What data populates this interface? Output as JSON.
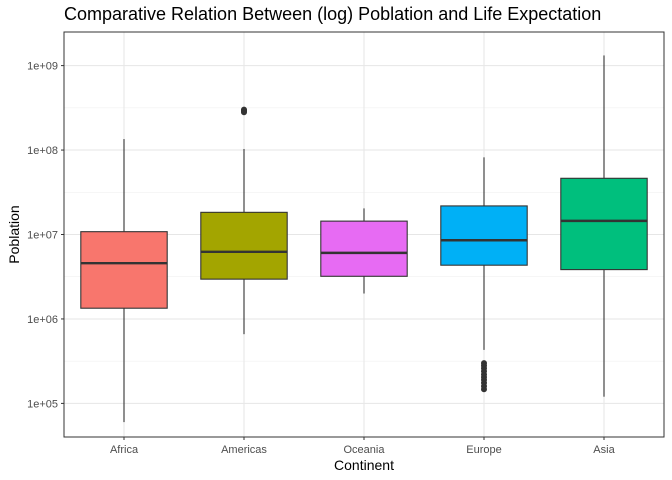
{
  "chart_data": {
    "type": "boxplot",
    "title": "Comparative Relation Between (log) Poblation and Life Expectation",
    "xlabel": "Continent",
    "ylabel": "Poblation",
    "y_scale": "log10",
    "ylim": [
      40000,
      2500000000
    ],
    "y_ticks": [
      100000,
      1000000,
      10000000,
      100000000,
      1000000000
    ],
    "y_tick_labels": [
      "1e+05",
      "1e+06",
      "1e+07",
      "1e+08",
      "1e+09"
    ],
    "grid": true,
    "legend": "none",
    "categories": [
      "Africa",
      "Americas",
      "Oceania",
      "Europe",
      "Asia"
    ],
    "boxes": [
      {
        "name": "Africa",
        "color": "#F8766D",
        "min": 60000,
        "q1": 1340000,
        "median": 4580000,
        "q3": 10800000,
        "max": 135000000,
        "outliers": []
      },
      {
        "name": "Americas",
        "color": "#A3A500",
        "min": 660000,
        "q1": 2960000,
        "median": 6230000,
        "q3": 18300000,
        "max": 103000000,
        "outliers": [
          295000000,
          301000000,
          287000000,
          280000000
        ]
      },
      {
        "name": "Oceania",
        "color": "#E76BF3",
        "min": 2000000,
        "q1": 3200000,
        "median": 6060000,
        "q3": 14400000,
        "max": 20400000,
        "outliers": []
      },
      {
        "name": "Europe",
        "color": "#00B0F6",
        "min": 430000,
        "q1": 4330000,
        "median": 8550000,
        "q3": 21800000,
        "max": 82000000,
        "outliers": [
          147000,
          160000,
          175000,
          190000,
          205000,
          220000,
          240000,
          260000,
          280000,
          300000
        ]
      },
      {
        "name": "Asia",
        "color": "#00BF7D",
        "min": 120000,
        "q1": 3840000,
        "median": 14500000,
        "q3": 46300000,
        "max": 1320000000,
        "outliers": []
      }
    ]
  }
}
